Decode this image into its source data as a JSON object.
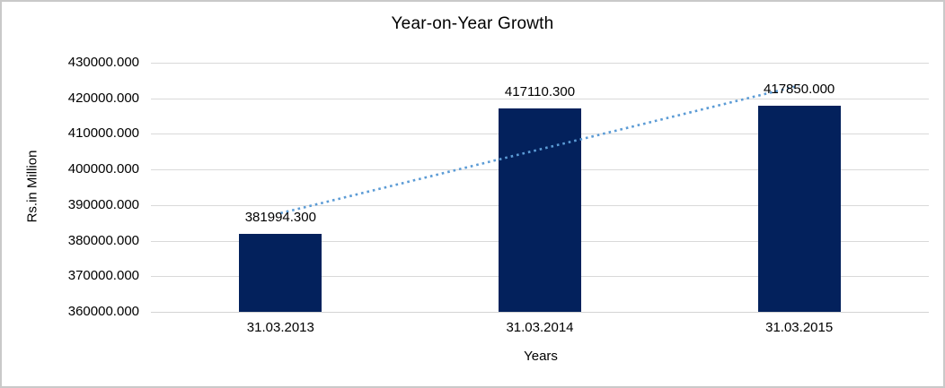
{
  "chart_data": {
    "type": "bar",
    "title": "Year-on-Year Growth",
    "categories": [
      "31.03.2013",
      "31.03.2014",
      "31.03.2015"
    ],
    "values": [
      381994.3,
      417110.3,
      417850.0
    ],
    "data_labels": [
      "381994.300",
      "417110.300",
      "417850.000"
    ],
    "xlabel": "Years",
    "ylabel": "Rs.in Million",
    "ylim": [
      360000,
      430000
    ],
    "ytick_step": 10000,
    "ytick_labels": [
      "430000.000",
      "420000.000",
      "410000.000",
      "400000.000",
      "390000.000",
      "380000.000",
      "370000.000",
      "360000.000"
    ],
    "grid": true,
    "legend_position": "none",
    "bar_color": "#03215c",
    "trendline": {
      "kind": "linear",
      "style": "dotted",
      "color": "#5b9bd5"
    },
    "colors": {
      "gridline": "#d9d9d9",
      "axis_line": "#d3d3d3",
      "text": "#000000",
      "background": "#ffffff",
      "border": "#c9c9c9"
    }
  }
}
